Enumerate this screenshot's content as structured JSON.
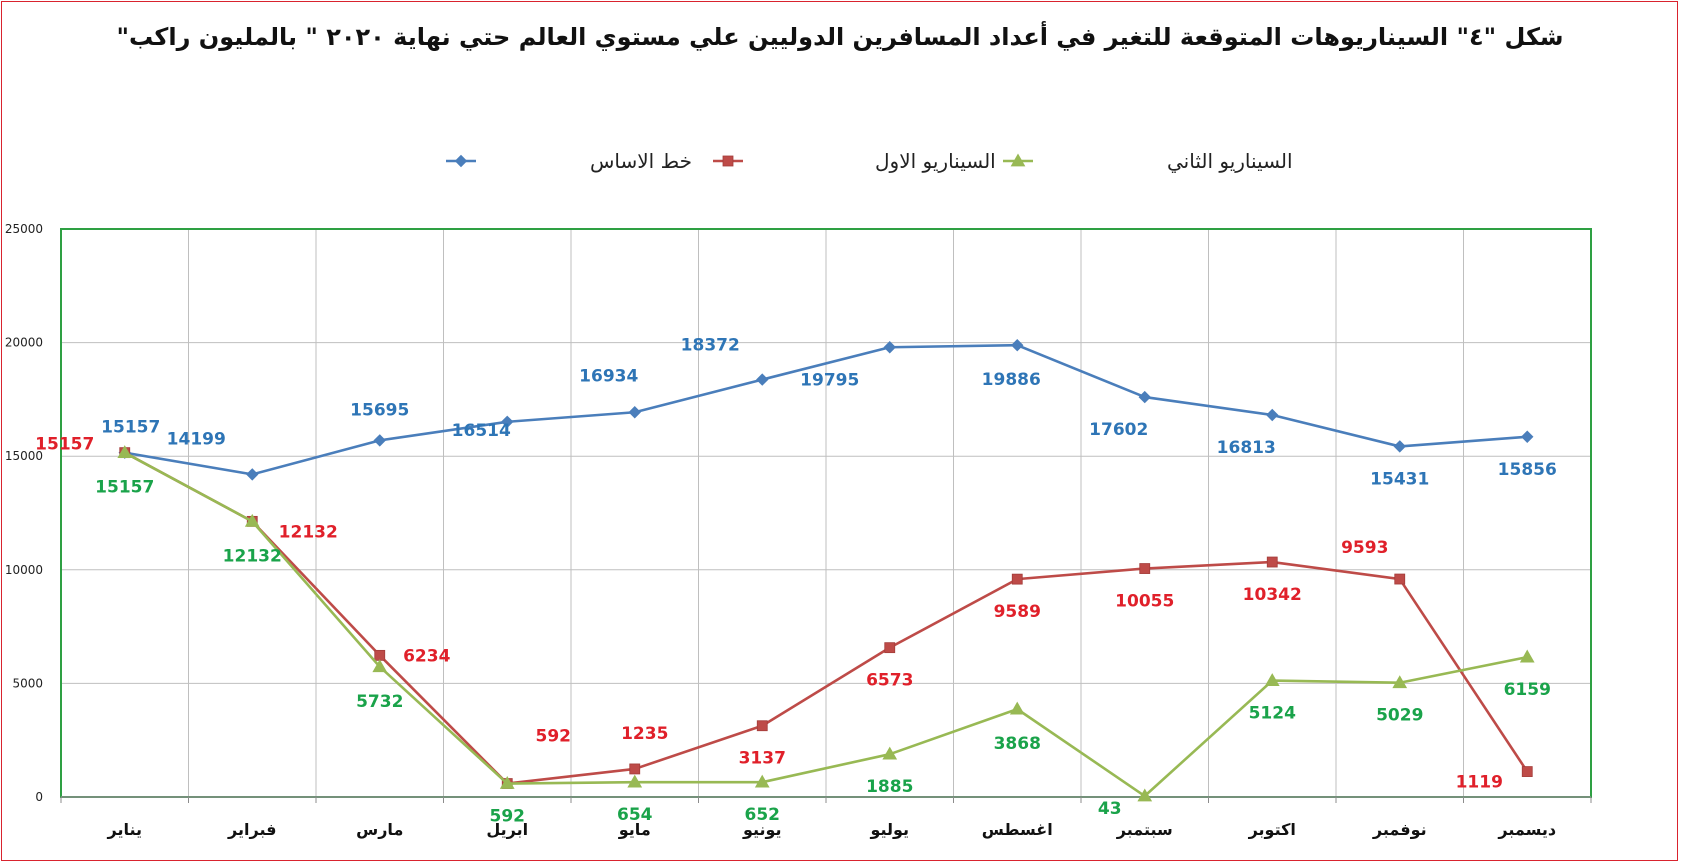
{
  "chart_data": {
    "type": "line",
    "title": "شكل \"٤\" السيناريوهات المتوقعة للتغير في أعداد  المسافرين الدوليين علي مستوي العالم حتي نهاية ٢٠٢٠ \" بالمليون راكب\"",
    "xlabel": "",
    "ylabel": "",
    "ylim": [
      0,
      25000
    ],
    "yticks": [
      0,
      5000,
      10000,
      15000,
      20000,
      25000
    ],
    "grid": true,
    "legend_position": "top",
    "categories": [
      "يناير",
      "فبراير",
      "مارس",
      "ابريل",
      "مايو",
      "يونيو",
      "يوليو",
      "اغسطس",
      "سبتمبر",
      "اكتوبر",
      "نوفمبر",
      "ديسمبر"
    ],
    "series": [
      {
        "name": "خط الاساس",
        "color": "#4a7ebb",
        "label_color": "#2e75b6",
        "marker": "diamond",
        "values": [
          15157,
          14199,
          15695,
          16514,
          16934,
          18372,
          19795,
          19886,
          17602,
          16813,
          15431,
          15856
        ]
      },
      {
        "name": "السيناريو الاول",
        "color": "#be4b48",
        "label_color": "#e0202a",
        "marker": "square",
        "values": [
          15157,
          12132,
          6234,
          592,
          1235,
          3137,
          6573,
          9589,
          10055,
          10342,
          9593,
          1119
        ]
      },
      {
        "name": "السيناريو الثاني",
        "color": "#98b954",
        "label_color": "#1aa34a",
        "marker": "triangle",
        "values": [
          15157,
          12132,
          5732,
          592,
          654,
          652,
          1885,
          3868,
          43,
          5124,
          5029,
          6159
        ]
      }
    ]
  }
}
